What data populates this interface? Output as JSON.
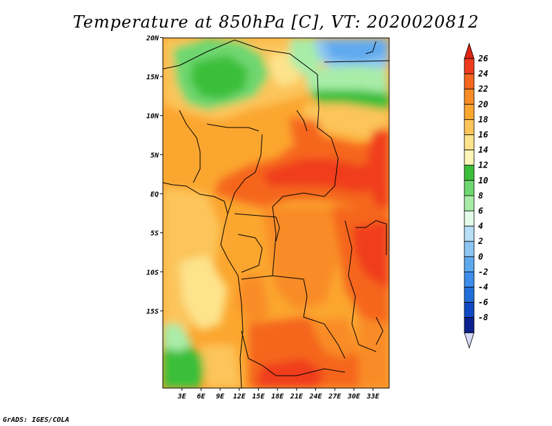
{
  "title": "Temperature at 850hPa [C], VT: 2020020812",
  "credit": "GrADS: IGES/COLA",
  "map": {
    "lat_labels": [
      {
        "lat": 20,
        "text": "20N"
      },
      {
        "lat": 15,
        "text": "15N"
      },
      {
        "lat": 10,
        "text": "10N"
      },
      {
        "lat": 5,
        "text": "5N"
      },
      {
        "lat": 0,
        "text": "EQ"
      },
      {
        "lat": -5,
        "text": "5S"
      },
      {
        "lat": -10,
        "text": "10S"
      },
      {
        "lat": -15,
        "text": "15S"
      }
    ],
    "lon_labels": [
      {
        "lon": 3,
        "text": "3E"
      },
      {
        "lon": 6,
        "text": "6E"
      },
      {
        "lon": 9,
        "text": "9E"
      },
      {
        "lon": 12,
        "text": "12E"
      },
      {
        "lon": 15,
        "text": "15E"
      },
      {
        "lon": 18,
        "text": "18E"
      },
      {
        "lon": 21,
        "text": "21E"
      },
      {
        "lon": 24,
        "text": "24E"
      },
      {
        "lon": 27,
        "text": "27E"
      },
      {
        "lon": 30,
        "text": "30E"
      },
      {
        "lon": 33,
        "text": "33E"
      }
    ]
  },
  "colorbar": {
    "levels": [
      {
        "label": "26",
        "color": "#f03c1e"
      },
      {
        "label": "24",
        "color": "#f5661e"
      },
      {
        "label": "22",
        "color": "#f98c26"
      },
      {
        "label": "20",
        "color": "#fba62f"
      },
      {
        "label": "18",
        "color": "#fcc45a"
      },
      {
        "label": "16",
        "color": "#fde38b"
      },
      {
        "label": "14",
        "color": "#fdf5b8"
      },
      {
        "label": "12",
        "color": "#3bbf3b"
      },
      {
        "label": "10",
        "color": "#6fd76f"
      },
      {
        "label": "8",
        "color": "#a8eca8"
      },
      {
        "label": "6",
        "color": "#e4fbe9"
      },
      {
        "label": "4",
        "color": "#b7def5"
      },
      {
        "label": "2",
        "color": "#8dc6f2"
      },
      {
        "label": "0",
        "color": "#5ea9ee"
      },
      {
        "label": "-2",
        "color": "#3d8deb"
      },
      {
        "label": "-4",
        "color": "#206fd9"
      },
      {
        "label": "-6",
        "color": "#1149c2"
      },
      {
        "label": "-8",
        "color": "#0b1f8d"
      }
    ],
    "top_color": "#dd2415",
    "bottom_color": "#d8d8f8"
  }
}
